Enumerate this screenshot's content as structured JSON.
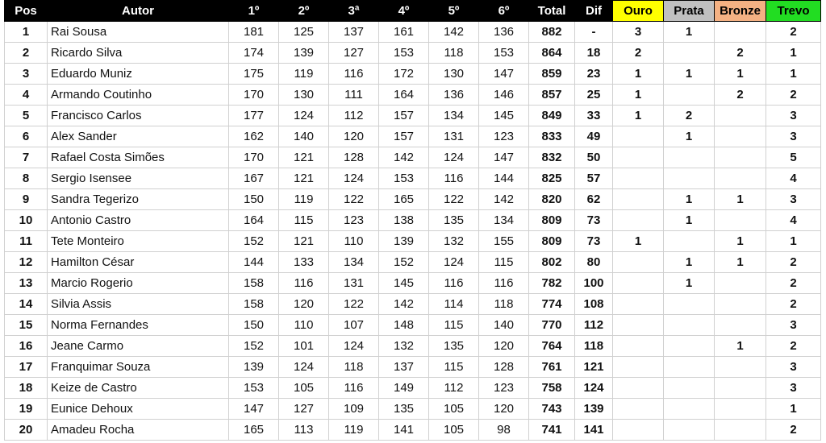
{
  "table": {
    "header": [
      "Pos",
      "Autor",
      "1º",
      "2º",
      "3ª",
      "4º",
      "5º",
      "6º",
      "Total",
      "Dif",
      "Ouro",
      "Prata",
      "Bronze",
      "Trevo"
    ],
    "rows": [
      [
        1,
        "Rai Sousa",
        181,
        125,
        137,
        161,
        142,
        136,
        882,
        "-",
        3,
        1,
        null,
        2
      ],
      [
        2,
        "Ricardo Silva",
        174,
        139,
        127,
        153,
        118,
        153,
        864,
        18,
        2,
        null,
        2,
        1
      ],
      [
        3,
        "Eduardo Muniz",
        175,
        119,
        116,
        172,
        130,
        147,
        859,
        23,
        1,
        1,
        1,
        1
      ],
      [
        4,
        "Armando Coutinho",
        170,
        130,
        111,
        164,
        136,
        146,
        857,
        25,
        1,
        null,
        2,
        2
      ],
      [
        5,
        "Francisco Carlos",
        177,
        124,
        112,
        157,
        134,
        145,
        849,
        33,
        1,
        2,
        null,
        3
      ],
      [
        6,
        "Alex Sander",
        162,
        140,
        120,
        157,
        131,
        123,
        833,
        49,
        null,
        1,
        null,
        3
      ],
      [
        7,
        "Rafael Costa Simões",
        170,
        121,
        128,
        142,
        124,
        147,
        832,
        50,
        null,
        null,
        null,
        5
      ],
      [
        8,
        "Sergio Isensee",
        167,
        121,
        124,
        153,
        116,
        144,
        825,
        57,
        null,
        null,
        null,
        4
      ],
      [
        9,
        "Sandra Tegerizo",
        150,
        119,
        122,
        165,
        122,
        142,
        820,
        62,
        null,
        1,
        1,
        3
      ],
      [
        10,
        "Antonio Castro",
        164,
        115,
        123,
        138,
        135,
        134,
        809,
        73,
        null,
        1,
        null,
        4
      ],
      [
        11,
        "Tete Monteiro",
        152,
        121,
        110,
        139,
        132,
        155,
        809,
        73,
        1,
        null,
        1,
        1
      ],
      [
        12,
        "Hamilton César",
        144,
        133,
        134,
        152,
        124,
        115,
        802,
        80,
        null,
        1,
        1,
        2
      ],
      [
        13,
        "Marcio Rogerio",
        158,
        116,
        131,
        145,
        116,
        116,
        782,
        100,
        null,
        1,
        null,
        2
      ],
      [
        14,
        "Silvia Assis",
        158,
        120,
        122,
        142,
        114,
        118,
        774,
        108,
        null,
        null,
        null,
        2
      ],
      [
        15,
        "Norma Fernandes",
        150,
        110,
        107,
        148,
        115,
        140,
        770,
        112,
        null,
        null,
        null,
        3
      ],
      [
        16,
        "Jeane Carmo",
        152,
        101,
        124,
        132,
        135,
        120,
        764,
        118,
        null,
        null,
        1,
        2
      ],
      [
        17,
        "Franquimar Souza",
        139,
        124,
        118,
        137,
        115,
        128,
        761,
        121,
        null,
        null,
        null,
        3
      ],
      [
        18,
        "Keize de Castro",
        153,
        105,
        116,
        149,
        112,
        123,
        758,
        124,
        null,
        null,
        null,
        3
      ],
      [
        19,
        "Eunice Dehoux",
        147,
        127,
        109,
        135,
        105,
        120,
        743,
        139,
        null,
        null,
        null,
        1
      ],
      [
        20,
        "Amadeu Rocha",
        165,
        113,
        119,
        141,
        105,
        98,
        741,
        141,
        null,
        null,
        null,
        2
      ]
    ]
  }
}
